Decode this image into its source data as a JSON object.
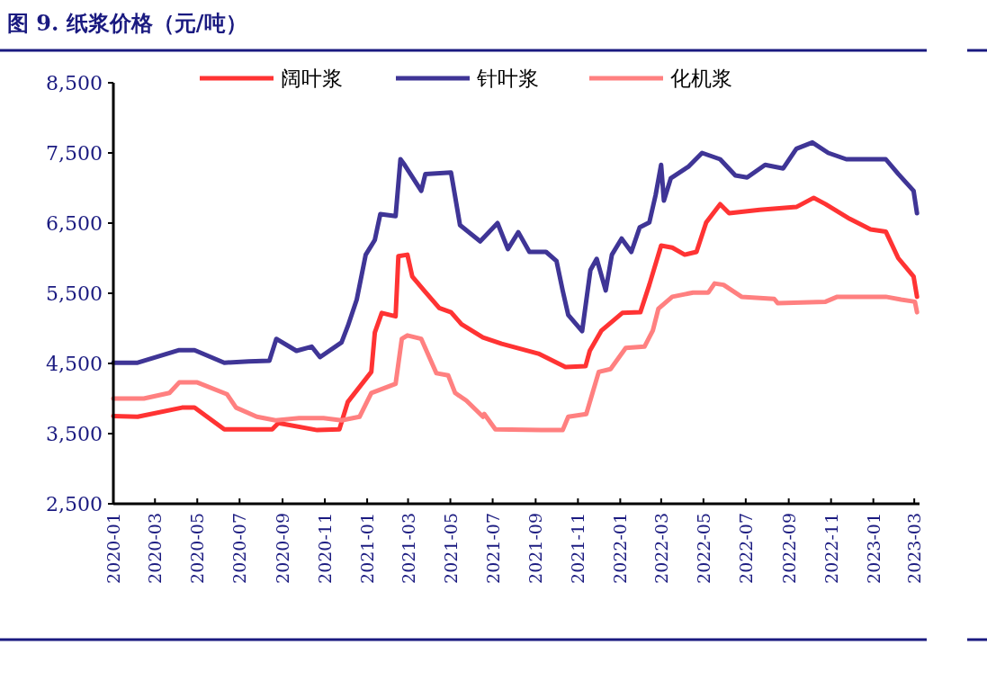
{
  "chart_data": {
    "type": "line",
    "title": "图 9. 纸浆价格（元/吨）",
    "xlim": [
      "2020-01-01",
      "2023-03-06"
    ],
    "xticks": [
      "2020-01",
      "2020-03",
      "2020-05",
      "2020-07",
      "2020-09",
      "2020-11",
      "2021-01",
      "2021-03",
      "2021-05",
      "2021-07",
      "2021-09",
      "2021-11",
      "2022-01",
      "2022-03",
      "2022-05",
      "2022-07",
      "2022-09",
      "2022-11",
      "2023-01",
      "2023-03"
    ],
    "ylim": [
      2500,
      8500
    ],
    "yticks": [
      {
        "value": 2500,
        "label": "2,500"
      },
      {
        "value": 3500,
        "label": "3,500"
      },
      {
        "value": 4500,
        "label": "4,500"
      },
      {
        "value": 5500,
        "label": "5,500"
      },
      {
        "value": 6500,
        "label": "6,500"
      },
      {
        "value": 7500,
        "label": "7,500"
      },
      {
        "value": 8500,
        "label": "8,500"
      }
    ],
    "grid": false,
    "legend": "top",
    "line_style": "solid",
    "series": [
      {
        "name": "阔叶浆",
        "color": "#ff3333",
        "x": [
          "2020-01-01",
          "2020-02-05",
          "2020-04-09",
          "2020-04-27",
          "2020-06-09",
          "2020-08-17",
          "2020-08-26",
          "2020-10-21",
          "2020-11-22",
          "2020-12-04",
          "2021-01-07",
          "2021-01-12",
          "2021-01-22",
          "2021-02-11",
          "2021-02-15",
          "2021-02-28",
          "2021-03-07",
          "2021-03-24",
          "2021-04-15",
          "2021-05-02",
          "2021-05-17",
          "2021-06-17",
          "2021-07-14",
          "2021-09-05",
          "2021-10-14",
          "2021-11-12",
          "2021-11-18",
          "2021-12-05",
          "2022-01-04",
          "2022-01-30",
          "2022-02-12",
          "2022-03-01",
          "2022-03-17",
          "2022-04-04",
          "2022-04-21",
          "2022-05-05",
          "2022-05-25",
          "2022-06-07",
          "2022-07-21",
          "2022-09-12",
          "2022-10-07",
          "2022-10-24",
          "2022-11-28",
          "2022-12-28",
          "2023-01-19",
          "2023-02-06",
          "2023-02-28",
          "2023-03-05"
        ],
        "values": [
          3750,
          3740,
          3870,
          3870,
          3560,
          3560,
          3650,
          3550,
          3560,
          3950,
          4380,
          4940,
          5220,
          5170,
          6030,
          6050,
          5740,
          5540,
          5290,
          5230,
          5060,
          4870,
          4780,
          4640,
          4450,
          4460,
          4680,
          4970,
          5220,
          5230,
          5620,
          6180,
          6150,
          6050,
          6090,
          6510,
          6770,
          6640,
          6690,
          6730,
          6860,
          6770,
          6560,
          6410,
          6380,
          6000,
          5740,
          5450
        ]
      },
      {
        "name": "针叶浆",
        "color": "#3f3596",
        "x": [
          "2020-01-01",
          "2020-02-05",
          "2020-04-05",
          "2020-04-27",
          "2020-06-09",
          "2020-07-14",
          "2020-08-13",
          "2020-08-23",
          "2020-09-21",
          "2020-10-13",
          "2020-10-25",
          "2020-11-25",
          "2020-12-04",
          "2020-12-17",
          "2020-12-30",
          "2021-01-12",
          "2021-01-20",
          "2021-02-11",
          "2021-02-18",
          "2021-02-24",
          "2021-03-20",
          "2021-03-26",
          "2021-05-02",
          "2021-05-15",
          "2021-06-13",
          "2021-07-08",
          "2021-07-23",
          "2021-08-07",
          "2021-08-23",
          "2021-09-16",
          "2021-10-01",
          "2021-10-10",
          "2021-10-18",
          "2021-11-07",
          "2021-11-19",
          "2021-11-28",
          "2021-12-11",
          "2021-12-20",
          "2022-01-03",
          "2022-01-17",
          "2022-01-29",
          "2022-02-12",
          "2022-02-21",
          "2022-03-01",
          "2022-03-05",
          "2022-03-15",
          "2022-04-10",
          "2022-04-29",
          "2022-05-25",
          "2022-06-16",
          "2022-07-03",
          "2022-07-29",
          "2022-08-24",
          "2022-09-12",
          "2022-10-05",
          "2022-10-28",
          "2022-11-23",
          "2022-12-19",
          "2023-01-19",
          "2023-02-06",
          "2023-02-28",
          "2023-03-05"
        ],
        "values": [
          4510,
          4510,
          4690,
          4690,
          4510,
          4530,
          4540,
          4850,
          4680,
          4740,
          4590,
          4800,
          5030,
          5410,
          6050,
          6260,
          6630,
          6600,
          7410,
          7330,
          6960,
          7200,
          7220,
          6470,
          6240,
          6500,
          6130,
          6370,
          6090,
          6090,
          5960,
          5540,
          5190,
          4960,
          5830,
          5990,
          5540,
          6050,
          6280,
          6090,
          6440,
          6510,
          6900,
          7330,
          6820,
          7140,
          7310,
          7500,
          7410,
          7180,
          7150,
          7330,
          7280,
          7560,
          7650,
          7500,
          7410,
          7410,
          7410,
          7200,
          6960,
          6640
        ]
      },
      {
        "name": "化机浆",
        "color": "#ff8080",
        "x": [
          "2020-01-01",
          "2020-02-14",
          "2020-03-22",
          "2020-04-05",
          "2020-05-01",
          "2020-06-13",
          "2020-06-26",
          "2020-07-26",
          "2020-08-22",
          "2020-09-25",
          "2020-10-30",
          "2020-11-25",
          "2020-12-21",
          "2021-01-07",
          "2021-02-11",
          "2021-02-20",
          "2021-02-28",
          "2021-03-20",
          "2021-04-11",
          "2021-04-28",
          "2021-05-08",
          "2021-05-24",
          "2021-06-17",
          "2021-06-19",
          "2021-07-05",
          "2021-09-09",
          "2021-10-10",
          "2021-10-18",
          "2021-11-13",
          "2021-12-01",
          "2021-12-18",
          "2022-01-09",
          "2022-02-05",
          "2022-02-17",
          "2022-02-25",
          "2022-03-17",
          "2022-04-16",
          "2022-05-08",
          "2022-05-17",
          "2022-05-30",
          "2022-06-25",
          "2022-08-11",
          "2022-08-16",
          "2022-10-24",
          "2022-11-10",
          "2023-01-19",
          "2023-02-10",
          "2023-03-02",
          "2023-03-05"
        ],
        "values": [
          4000,
          4000,
          4080,
          4230,
          4230,
          4060,
          3870,
          3740,
          3690,
          3720,
          3720,
          3690,
          3740,
          4080,
          4210,
          4850,
          4900,
          4850,
          4360,
          4330,
          4080,
          3970,
          3740,
          3780,
          3560,
          3550,
          3550,
          3740,
          3780,
          4380,
          4420,
          4720,
          4740,
          4970,
          5280,
          5450,
          5510,
          5510,
          5640,
          5620,
          5450,
          5420,
          5360,
          5380,
          5450,
          5450,
          5410,
          5380,
          5230
        ]
      }
    ]
  }
}
